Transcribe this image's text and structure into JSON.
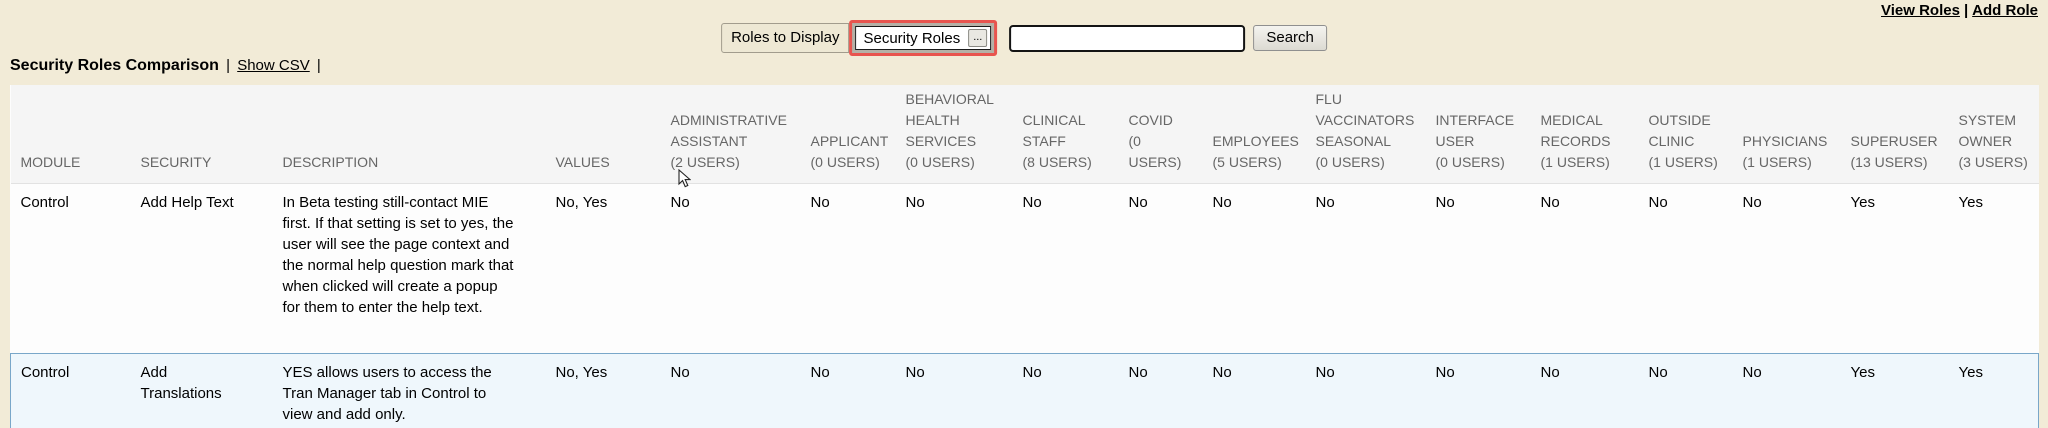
{
  "colors": {
    "page-bg": "#f2ebd7",
    "accent-red": "#e8544e",
    "table-header-bg": "#f5f5f5",
    "table-row-bg": "#fdfdfd",
    "highlight-row-bg": "#eff7fc",
    "highlight-row-border": "#79a7c9",
    "header-text": "#666666"
  },
  "top_links": {
    "view_roles": "View Roles",
    "separator": "|",
    "add_role": "Add Role"
  },
  "toolbar": {
    "roles_to_display_label": "Roles to Display",
    "roles_picker_value": "Security Roles",
    "roles_picker_button_label": "...",
    "search_input_value": "",
    "search_button_label": "Search"
  },
  "heading": {
    "title": "Security Roles Comparison",
    "separator": "|",
    "show_csv_label": "Show CSV"
  },
  "table": {
    "columns": [
      {
        "id": "module",
        "label": "MODULE",
        "lines": [
          "MODULE"
        ]
      },
      {
        "id": "security",
        "label": "SECURITY",
        "lines": [
          "SECURITY"
        ]
      },
      {
        "id": "description",
        "label": "DESCRIPTION",
        "lines": [
          "DESCRIPTION"
        ]
      },
      {
        "id": "values",
        "label": "VALUES",
        "lines": [
          "VALUES"
        ]
      },
      {
        "id": "administrative-assistant",
        "label": "ADMINISTRATIVE ASSISTANT (2 USERS)",
        "lines": [
          "ADMINISTRATIVE",
          "ASSISTANT",
          "(2 USERS)"
        ]
      },
      {
        "id": "applicant",
        "label": "APPLICANT (0 USERS)",
        "lines": [
          "APPLICANT",
          "(0 USERS)"
        ]
      },
      {
        "id": "behavioral-health-services",
        "label": "BEHAVIORAL HEALTH SERVICES (0 USERS)",
        "lines": [
          "BEHAVIORAL",
          "HEALTH",
          "SERVICES",
          "(0 USERS)"
        ]
      },
      {
        "id": "clinical-staff",
        "label": "CLINICAL STAFF (8 USERS)",
        "lines": [
          "CLINICAL",
          "STAFF",
          "(8 USERS)"
        ]
      },
      {
        "id": "covid",
        "label": "COVID (0 USERS)",
        "lines": [
          "COVID",
          "(0",
          "USERS)"
        ]
      },
      {
        "id": "employees",
        "label": "EMPLOYEES (5 USERS)",
        "lines": [
          "EMPLOYEES",
          "(5 USERS)"
        ]
      },
      {
        "id": "flu-vaccinators-seasonal",
        "label": "FLU VACCINATORS SEASONAL (0 USERS)",
        "lines": [
          "FLU",
          "VACCINATORS",
          "SEASONAL",
          "(0 USERS)"
        ]
      },
      {
        "id": "interface-user",
        "label": "INTERFACE USER (0 USERS)",
        "lines": [
          "INTERFACE",
          "USER",
          "(0 USERS)"
        ]
      },
      {
        "id": "medical-records",
        "label": "MEDICAL RECORDS (1 USERS)",
        "lines": [
          "MEDICAL",
          "RECORDS",
          "(1 USERS)"
        ]
      },
      {
        "id": "outside-clinic",
        "label": "OUTSIDE CLINIC (1 USERS)",
        "lines": [
          "OUTSIDE",
          "CLINIC",
          "(1 USERS)"
        ]
      },
      {
        "id": "physicians",
        "label": "PHYSICIANS (1 USERS)",
        "lines": [
          "PHYSICIANS",
          "(1 USERS)"
        ]
      },
      {
        "id": "superuser",
        "label": "SUPERUSER (13 USERS)",
        "lines": [
          "SUPERUSER",
          "(13 USERS)"
        ]
      },
      {
        "id": "system-owner",
        "label": "SYSTEM OWNER (3 USERS)",
        "lines": [
          "SYSTEM",
          "OWNER",
          "(3 USERS)"
        ]
      }
    ],
    "rows": [
      {
        "module": "Control",
        "security": "Add Help Text",
        "description": "In Beta testing still-contact MIE first. If that setting is set to yes, the user will see the page context and the normal help question mark that when clicked will create a popup for them to enter the help text.",
        "values": "No, Yes",
        "role_values": [
          "No",
          "No",
          "No",
          "No",
          "No",
          "No",
          "No",
          "No",
          "No",
          "No",
          "No",
          "Yes",
          "Yes"
        ],
        "highlighted": false
      },
      {
        "module": "Control",
        "security": "Add Translations",
        "description": "YES allows users to access the Tran Manager tab in Control to view and add only.",
        "values": "No, Yes",
        "role_values": [
          "No",
          "No",
          "No",
          "No",
          "No",
          "No",
          "No",
          "No",
          "No",
          "No",
          "No",
          "Yes",
          "Yes"
        ],
        "highlighted": true
      }
    ]
  }
}
